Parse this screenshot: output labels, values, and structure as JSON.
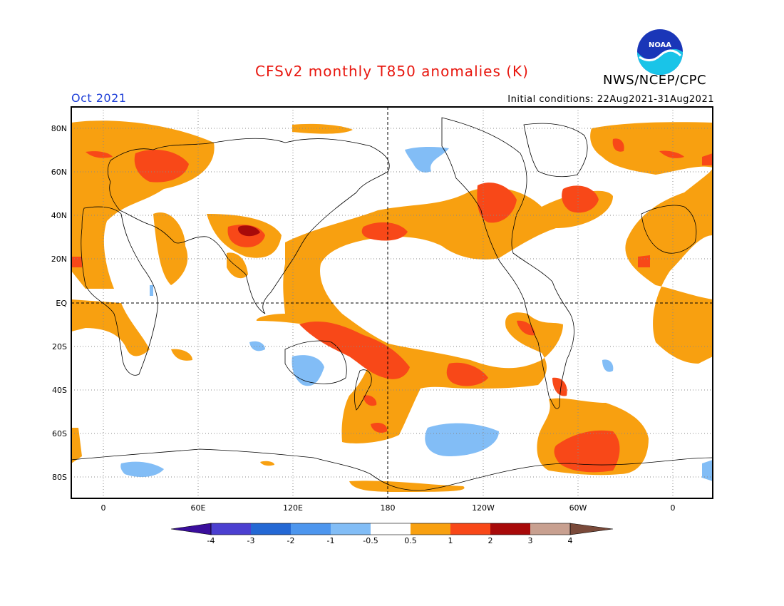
{
  "title": "CFSv2 monthly T850 anomalies (K)",
  "month": "Oct 2021",
  "initial_conditions": "Initial conditions: 22Aug2021-31Aug2021",
  "agency": "NWS/NCEP/CPC",
  "logo_text": "NOAA",
  "colors": {
    "title": "#e8160e",
    "month": "#1e3fd8",
    "c_neg4": "#3a0e9c",
    "c_neg3": "#4b3fd0",
    "c_neg2": "#2468d4",
    "c_neg1": "#4d96ee",
    "c_neg05": "#82bdf6",
    "c_zero": "#ffffff",
    "c_pos05": "#f8a010",
    "c_pos1": "#f84818",
    "c_pos2": "#a80a0a",
    "c_pos3": "#c8a090",
    "c_pos4": "#7a4a3a"
  },
  "lat_labels": [
    "80N",
    "60N",
    "40N",
    "20N",
    "EQ",
    "20S",
    "40S",
    "60S",
    "80S"
  ],
  "lon_labels": [
    "0",
    "60E",
    "120E",
    "180",
    "120W",
    "60W",
    "0"
  ],
  "colorbar": {
    "labels": [
      "-4",
      "-3",
      "-2",
      "-1",
      "-0.5",
      "0.5",
      "1",
      "2",
      "3",
      "4"
    ]
  }
}
